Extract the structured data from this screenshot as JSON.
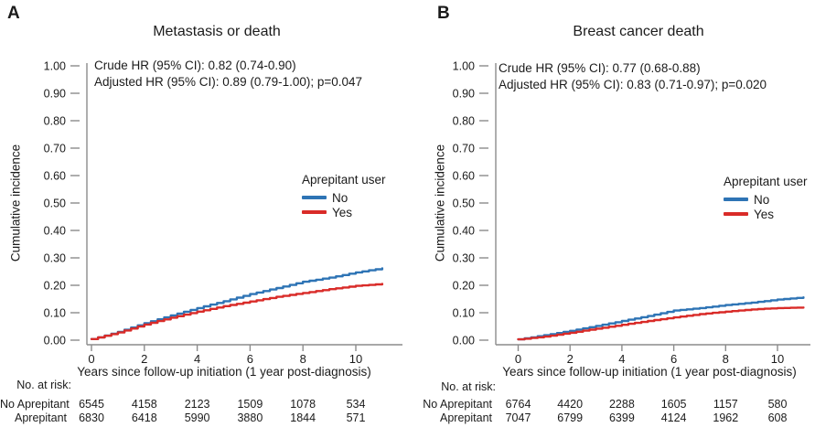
{
  "colors": {
    "no_user_line": "#2E74B5",
    "yes_user_line": "#D92B28",
    "axis": "#8C8C8C",
    "text": "#1B1B1B"
  },
  "chart_data": [
    {
      "type": "line",
      "panel_label": "A",
      "title": "Metastasis or death",
      "xlabel": "Years since follow-up initiation (1 year post-diagnosis)",
      "ylabel": "Cumulative incidence",
      "xlim": [
        0,
        11.5
      ],
      "ylim": [
        0,
        1.0
      ],
      "grid": false,
      "xticks": [
        0,
        2,
        4,
        6,
        8,
        10
      ],
      "ytick_labels": [
        "0.00",
        "0.10",
        "0.20",
        "0.30",
        "0.40",
        "0.50",
        "0.60",
        "0.70",
        "0.80",
        "0.90",
        "1.00"
      ],
      "annotation_lines": [
        "Crude HR (95% CI): 0.82 (0.74-0.90)",
        "Adjusted HR (95% CI): 0.89 (0.79-1.00); p=0.047"
      ],
      "legend": {
        "title": "Aprepitant user",
        "position": "right",
        "items": [
          {
            "label": "No",
            "color": "#2E74B5"
          },
          {
            "label": "Yes",
            "color": "#D92B28"
          }
        ]
      },
      "series": [
        {
          "name": "No",
          "color": "#2E74B5",
          "x": [
            0,
            1,
            2,
            3,
            4,
            5,
            6,
            7,
            8,
            9,
            10,
            11
          ],
          "y": [
            0.004,
            0.03,
            0.062,
            0.09,
            0.117,
            0.142,
            0.168,
            0.19,
            0.213,
            0.228,
            0.247,
            0.262
          ]
        },
        {
          "name": "Yes",
          "color": "#D92B28",
          "x": [
            0,
            1,
            2,
            3,
            4,
            5,
            6,
            7,
            8,
            9,
            10,
            11
          ],
          "y": [
            0.004,
            0.028,
            0.057,
            0.082,
            0.104,
            0.124,
            0.141,
            0.158,
            0.172,
            0.186,
            0.198,
            0.205
          ]
        }
      ],
      "at_risk": {
        "label": "No. at risk:",
        "times": [
          0,
          2,
          4,
          6,
          8,
          10
        ],
        "rows": [
          {
            "label": "No Aprepitant",
            "values": [
              6545,
              4158,
              2123,
              1509,
              1078,
              534
            ]
          },
          {
            "label": "Aprepitant",
            "values": [
              6830,
              6418,
              5990,
              3880,
              1844,
              571
            ]
          }
        ]
      }
    },
    {
      "type": "line",
      "panel_label": "B",
      "title": "Breast cancer death",
      "xlabel": "Years since follow-up initiation (1 year post-diagnosis)",
      "ylabel": "Cumulative incidence",
      "xlim": [
        0,
        11.5
      ],
      "ylim": [
        0,
        1.0
      ],
      "grid": false,
      "xticks": [
        0,
        2,
        4,
        6,
        8,
        10
      ],
      "ytick_labels": [
        "0.00",
        "0.10",
        "0.20",
        "0.30",
        "0.40",
        "0.50",
        "0.60",
        "0.70",
        "0.80",
        "0.90",
        "1.00"
      ],
      "annotation_lines": [
        "Crude HR (95% CI): 0.77 (0.68-0.88)",
        "Adjusted HR (95% CI): 0.83 (0.71-0.97); p=0.020"
      ],
      "legend": {
        "title": "Aprepitant user",
        "position": "right",
        "items": [
          {
            "label": "No",
            "color": "#2E74B5"
          },
          {
            "label": "Yes",
            "color": "#D92B28"
          }
        ]
      },
      "series": [
        {
          "name": "No",
          "color": "#2E74B5",
          "x": [
            0,
            1,
            2,
            3,
            4,
            5,
            6,
            7,
            8,
            9,
            10,
            11
          ],
          "y": [
            0.003,
            0.018,
            0.034,
            0.052,
            0.07,
            0.088,
            0.108,
            0.117,
            0.128,
            0.137,
            0.148,
            0.156
          ]
        },
        {
          "name": "Yes",
          "color": "#D92B28",
          "x": [
            0,
            1,
            2,
            3,
            4,
            5,
            6,
            7,
            8,
            9,
            10,
            11
          ],
          "y": [
            0.003,
            0.013,
            0.027,
            0.042,
            0.056,
            0.07,
            0.083,
            0.095,
            0.104,
            0.112,
            0.117,
            0.119
          ]
        }
      ],
      "at_risk": {
        "label": "No. at risk:",
        "times": [
          0,
          2,
          4,
          6,
          8,
          10
        ],
        "rows": [
          {
            "label": "No Aprepitant",
            "values": [
              6764,
              4420,
              2288,
              1605,
              1157,
              580
            ]
          },
          {
            "label": "Aprepitant",
            "values": [
              7047,
              6799,
              6399,
              4124,
              1962,
              608
            ]
          }
        ]
      }
    }
  ]
}
